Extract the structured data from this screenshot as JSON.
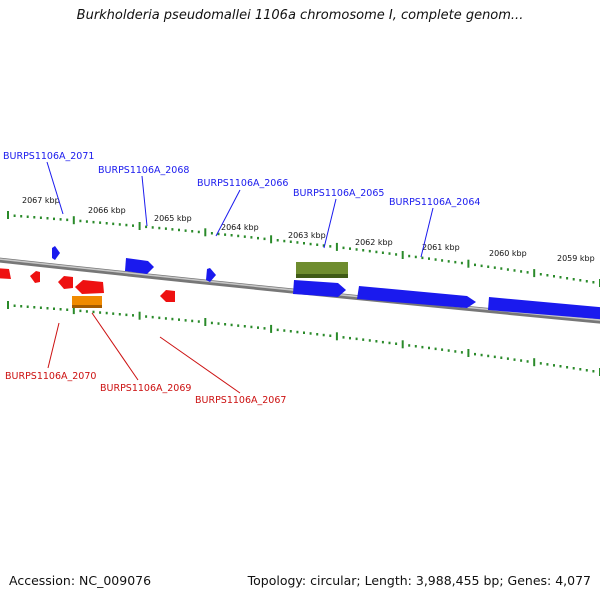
{
  "title": "Burkholderia pseudomallei 1106a chromosome I, complete genom...",
  "accession": "Accession: NC_009076",
  "summary": "Topology: circular; Length: 3,988,455 bp; Genes: 4,077",
  "colors": {
    "forward_gene": "#1a1aee",
    "reverse_gene": "#ee1111",
    "olive_feature": "#6e8c2e",
    "orange_feature": "#f08a00",
    "ticks": "#2a8a2a",
    "backbone": "#888888"
  },
  "scale_labels": [
    "2067 kbp",
    "2066 kbp",
    "2065 kbp",
    "2064 kbp",
    "2063 kbp",
    "2062 kbp",
    "2061 kbp",
    "2060 kbp",
    "2059 kbp"
  ],
  "forward_genes": [
    {
      "label": "BURPS1106A_2071",
      "color": "#1a1aee"
    },
    {
      "label": "BURPS1106A_2068",
      "color": "#1a1aee"
    },
    {
      "label": "BURPS1106A_2066",
      "color": "#1a1aee"
    },
    {
      "label": "BURPS1106A_2065",
      "color": "#1a1aee"
    },
    {
      "label": "BURPS1106A_2064",
      "color": "#1a1aee"
    }
  ],
  "reverse_genes": [
    {
      "label": "BURPS1106A_2070",
      "color": "#cc1111"
    },
    {
      "label": "BURPS1106A_2069",
      "color": "#cc1111"
    },
    {
      "label": "BURPS1106A_2067",
      "color": "#cc1111"
    }
  ]
}
